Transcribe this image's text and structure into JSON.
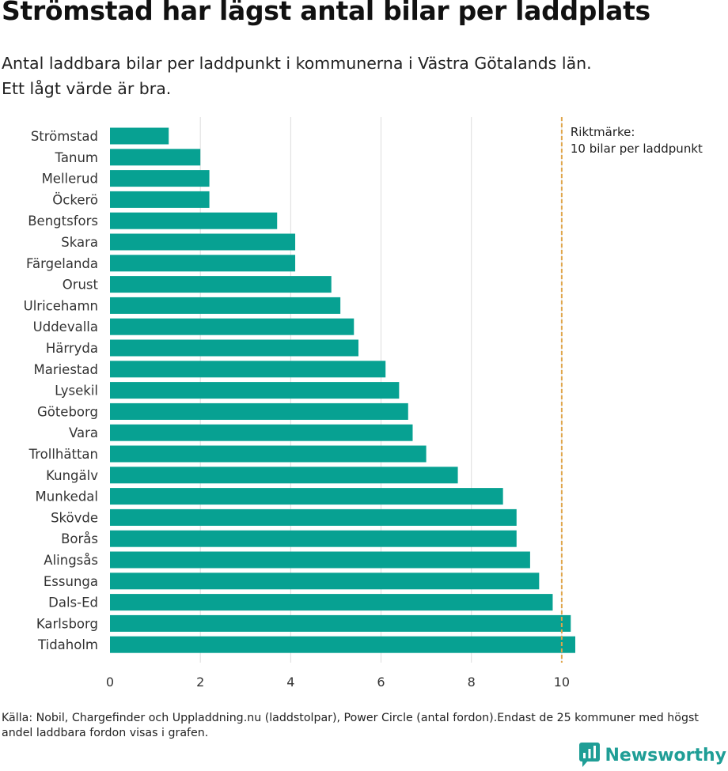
{
  "title": "Strömstad har lägst antal bilar per laddplats",
  "subtitle_line1": "Antal laddbara bilar per laddpunkt i kommunerna i Västra Götalands län.",
  "subtitle_line2": "Ett lågt värde är bra.",
  "source": "Källa: Nobil, Chargefinder och Uppladdning.nu (laddstolpar), Power Circle (antal fordon).Endast de 25 kommuner med högst andel laddbara fordon visas i grafen.",
  "logo_text": "Newsworthy",
  "colors": {
    "bar": "#07a192",
    "reference": "#e0a54a",
    "grid": "#dddddd"
  },
  "chart_data": {
    "type": "bar",
    "orientation": "horizontal",
    "categories": [
      "Strömstad",
      "Tanum",
      "Mellerud",
      "Öckerö",
      "Bengtsfors",
      "Skara",
      "Färgelanda",
      "Orust",
      "Ulricehamn",
      "Uddevalla",
      "Härryda",
      "Mariestad",
      "Lysekil",
      "Göteborg",
      "Vara",
      "Trollhättan",
      "Kungälv",
      "Munkedal",
      "Skövde",
      "Borås",
      "Alingsås",
      "Essunga",
      "Dals-Ed",
      "Karlsborg",
      "Tidaholm"
    ],
    "values": [
      1.3,
      2.0,
      2.2,
      2.2,
      3.7,
      4.1,
      4.1,
      4.9,
      5.1,
      5.4,
      5.5,
      6.1,
      6.4,
      6.6,
      6.7,
      7.0,
      7.7,
      8.7,
      9.0,
      9.0,
      9.3,
      9.5,
      9.8,
      10.2,
      10.3
    ],
    "xlim": [
      0,
      10.3
    ],
    "xticks": [
      0,
      2,
      4,
      6,
      8,
      10
    ],
    "xtick_labels": [
      "0",
      "2",
      "4",
      "6",
      "8",
      "10"
    ],
    "reference_line": {
      "value": 10,
      "label_line1": "Riktmärke:",
      "label_line2": "10 bilar per laddpunkt"
    },
    "grid": true
  }
}
